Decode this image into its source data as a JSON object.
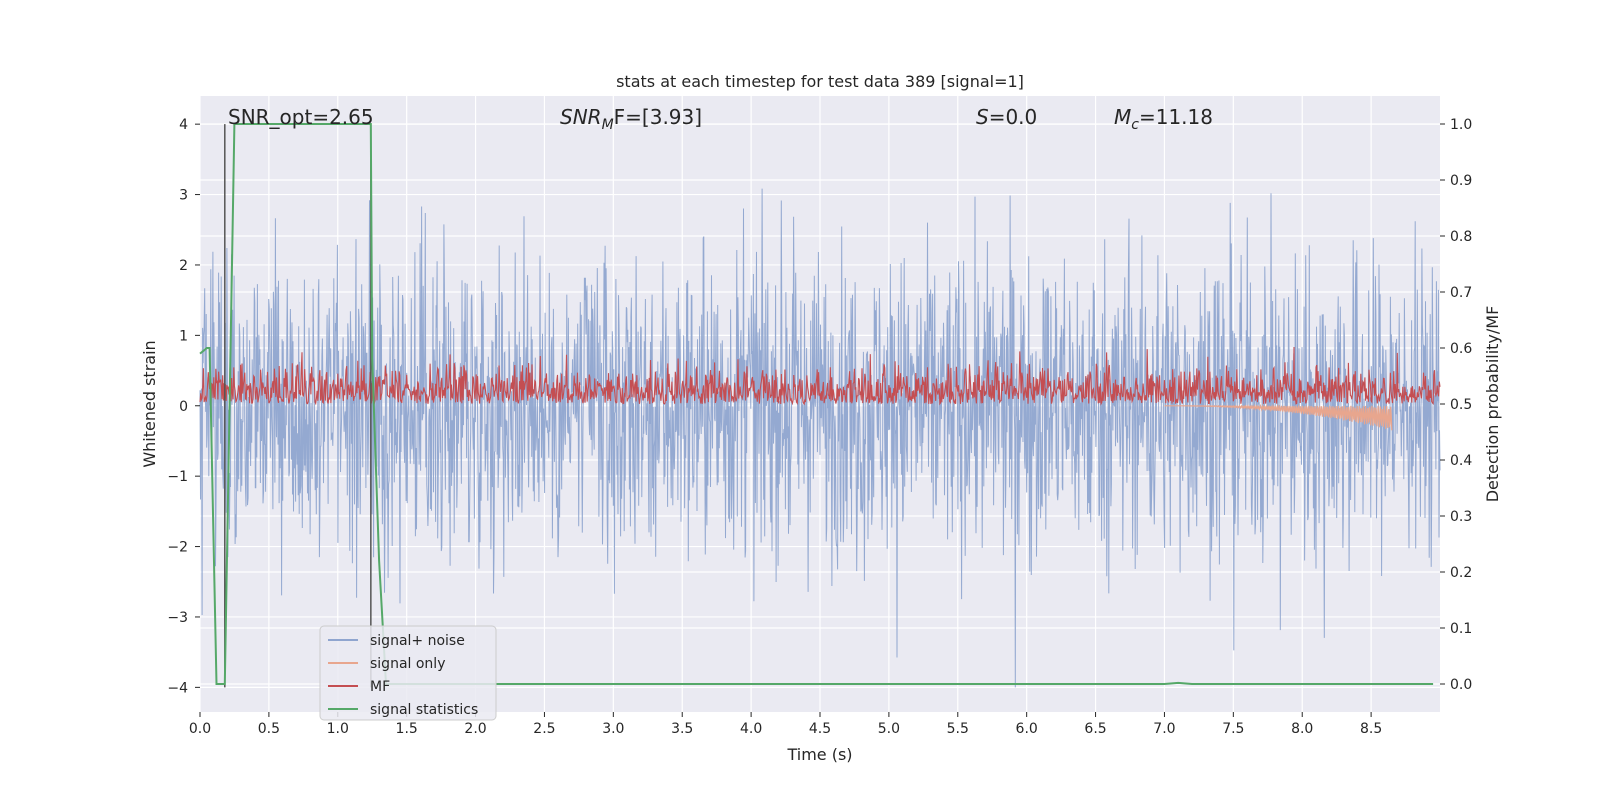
{
  "chart_data": {
    "type": "line",
    "title": "stats at each timestep for test data 389 [signal=1]",
    "xlabel": "Time (s)",
    "ylabel_left": "Whitened strain",
    "ylabel_right": "Detection probability/MF",
    "xlim": [
      0.0,
      9.0
    ],
    "ylim_left": [
      -4.35,
      4.4
    ],
    "ylim_right": [
      -0.05,
      1.05
    ],
    "grid": true,
    "legend_position": "lower-left",
    "x_ticks": [
      "0.0",
      "0.5",
      "1.0",
      "1.5",
      "2.0",
      "2.5",
      "3.0",
      "3.5",
      "4.0",
      "4.5",
      "5.0",
      "5.5",
      "6.0",
      "6.5",
      "7.0",
      "7.5",
      "8.0",
      "8.5"
    ],
    "x_tick_values": [
      0,
      0.5,
      1,
      1.5,
      2,
      2.5,
      3,
      3.5,
      4,
      4.5,
      5,
      5.5,
      6,
      6.5,
      7,
      7.5,
      8,
      8.5
    ],
    "y_left_ticks": [
      "−4",
      "−3",
      "−2",
      "−1",
      "0",
      "1",
      "2",
      "3",
      "4"
    ],
    "y_left_tick_values": [
      -4,
      -3,
      -2,
      -1,
      0,
      1,
      2,
      3,
      4
    ],
    "y_right_ticks": [
      "0.0",
      "0.1",
      "0.2",
      "0.3",
      "0.4",
      "0.5",
      "0.6",
      "0.7",
      "0.8",
      "0.9",
      "1.0"
    ],
    "y_right_tick_values": [
      0,
      0.1,
      0.2,
      0.3,
      0.4,
      0.5,
      0.6,
      0.7,
      0.8,
      0.9,
      1.0
    ],
    "annotations": {
      "snr_opt": "SNR_opt=2.65",
      "snr_mf_sym": "SNR",
      "snr_mf_sub": "M",
      "snr_mf_rest": "F=[3.93]",
      "s_sym": "S",
      "s_rest": "=0.0",
      "mc_sym": "M",
      "mc_sub": "c",
      "mc_rest": "=11.18"
    },
    "vertical_lines_x": [
      0.18,
      1.24
    ],
    "series": [
      {
        "name": "signal+ noise",
        "axis": "left",
        "color": "#8fa5cf",
        "x_range": [
          0.0,
          9.0
        ],
        "approx_range": [
          -4.0,
          4.0
        ]
      },
      {
        "name": "signal only",
        "axis": "left",
        "color": "#e8a68e",
        "x_range": [
          7.0,
          8.65
        ],
        "approx_min": -0.35
      },
      {
        "name": "MF",
        "axis": "right",
        "color": "#c44e52",
        "x_range": [
          0.0,
          9.0
        ],
        "approx_range": [
          0.5,
          0.62
        ]
      },
      {
        "name": "signal statistics",
        "axis": "right",
        "color": "#55a868",
        "x": [
          0.0,
          0.05,
          0.07,
          0.12,
          0.18,
          0.25,
          1.24,
          1.25,
          1.3,
          1.35,
          4.0,
          7.0,
          7.1,
          7.2,
          8.95
        ],
        "values": [
          0.59,
          0.6,
          0.6,
          0.0,
          0.0,
          1.0,
          1.0,
          0.58,
          0.22,
          0.0,
          0.0,
          0.0,
          0.002,
          0.0,
          0.0
        ]
      }
    ]
  },
  "colors": {
    "axes_bg": "#eaeaf2",
    "grid": "#ffffff",
    "text": "#262626",
    "vline": "#555555"
  }
}
